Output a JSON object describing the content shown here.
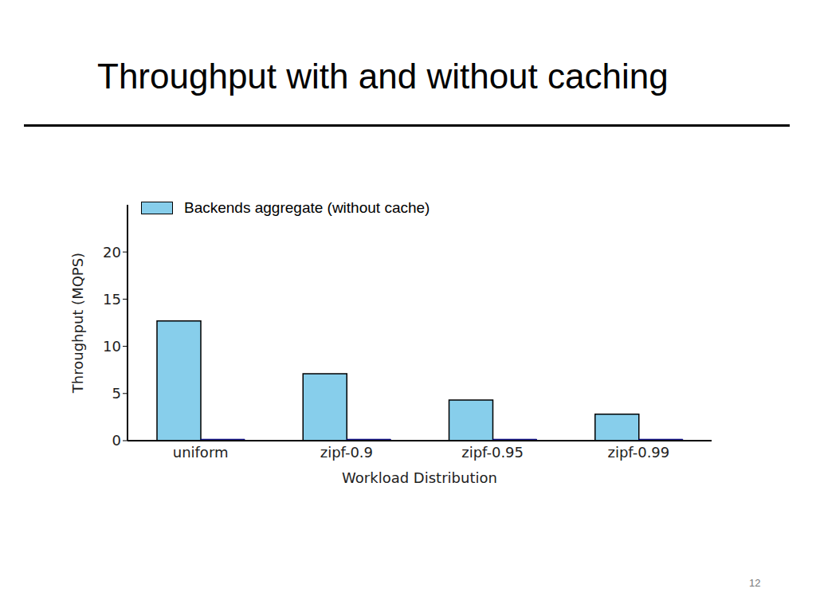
{
  "chart_data": {
    "type": "bar",
    "title": "Throughput with and without caching",
    "x_label": "Workload Distribution",
    "y_label": "Throughput (MQPS)",
    "categories": [
      "uniform",
      "zipf-0.9",
      "zipf-0.95",
      "zipf-0.99"
    ],
    "series": [
      {
        "name": "Backends aggregate (without cache)",
        "color": "#87ceeb",
        "values": [
          12.7,
          7.1,
          4.3,
          2.8
        ]
      },
      {
        "color": "#000080",
        "values": [
          0.15,
          0.15,
          0.15,
          0.15
        ]
      }
    ],
    "ylim": [
      0,
      25
    ],
    "yticks": [
      0,
      5,
      10,
      15,
      20
    ],
    "legend": "upper left"
  },
  "slide_number": 12
}
